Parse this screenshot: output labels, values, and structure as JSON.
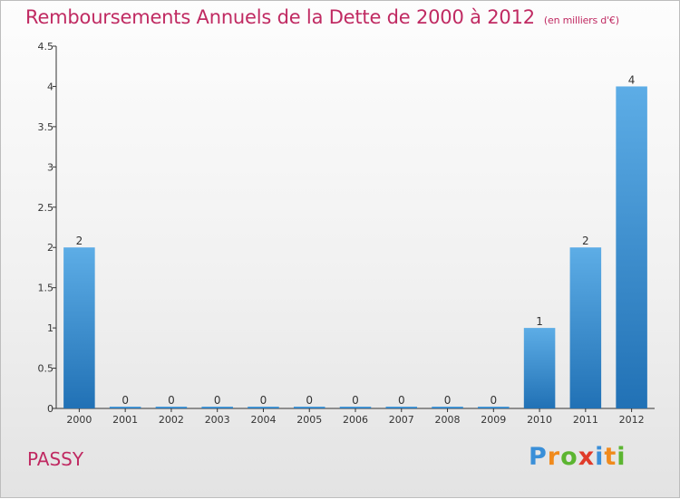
{
  "title": "Remboursements Annuels de la Dette de 2000 à 2012",
  "subtitle": "(en milliers d'€)",
  "city": "PASSY",
  "logo": {
    "letters": [
      "P",
      "r",
      "o",
      "x",
      "i",
      "t",
      "i"
    ],
    "colors": [
      "#3a8fd8",
      "#f08a1c",
      "#5cb531",
      "#e03b2a",
      "#3a8fd8",
      "#f08a1c",
      "#5cb531"
    ]
  },
  "colors": {
    "title": "#c02a62",
    "bar_light": "#5dade6",
    "bar_dark": "#2171b5",
    "axis": "#333333"
  },
  "chart_data": {
    "type": "bar",
    "title": "Remboursements Annuels de la Dette de 2000 à 2012",
    "subtitle": "(en milliers d'€)",
    "xlabel": "",
    "ylabel": "",
    "ylim": [
      0,
      4.5
    ],
    "yticks": [
      0,
      0.5,
      1,
      1.5,
      2,
      2.5,
      3,
      3.5,
      4,
      4.5
    ],
    "ytick_labels": [
      "0",
      "0.5",
      "1",
      "1.5",
      "2",
      "2.5",
      "3",
      "3.5",
      "4",
      "4.5"
    ],
    "categories": [
      "2000",
      "2001",
      "2002",
      "2003",
      "2004",
      "2005",
      "2006",
      "2007",
      "2008",
      "2009",
      "2010",
      "2011",
      "2012"
    ],
    "values": [
      2,
      0,
      0,
      0,
      0,
      0,
      0,
      0,
      0,
      0,
      1,
      2,
      4
    ],
    "value_labels": [
      "2",
      "0",
      "0",
      "0",
      "0",
      "0",
      "0",
      "0",
      "0",
      "0",
      "1",
      "2",
      "4"
    ],
    "grid": false,
    "legend": "none"
  }
}
